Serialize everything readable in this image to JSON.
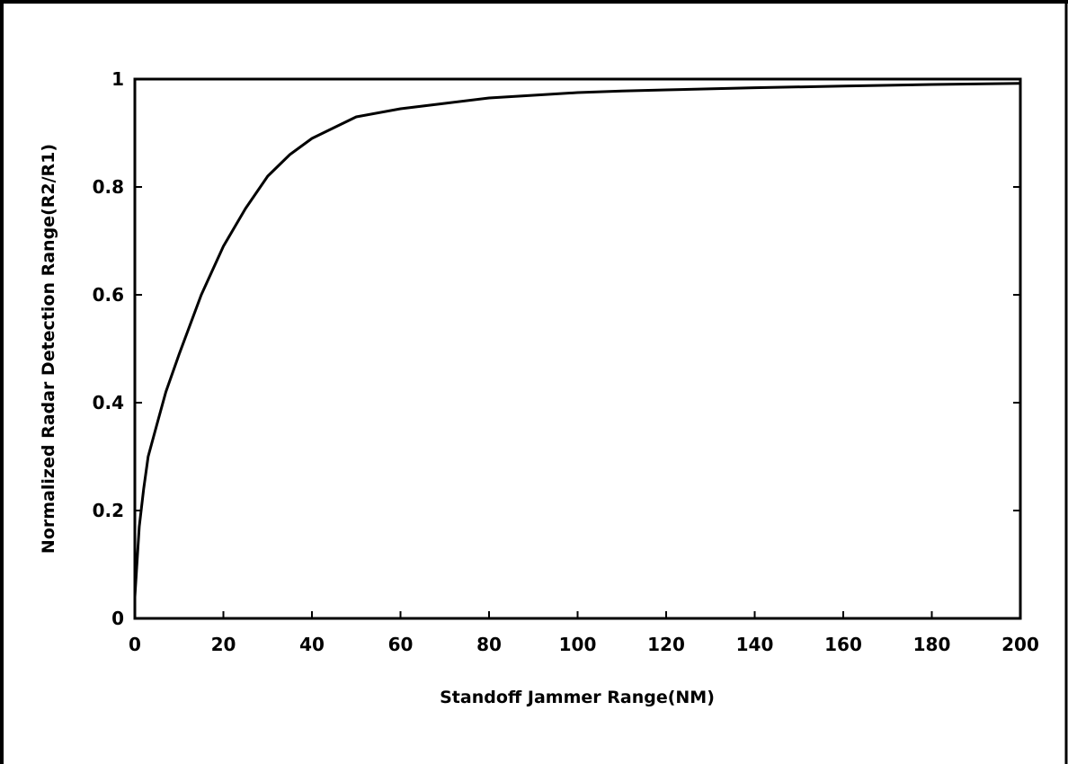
{
  "chart_data": {
    "type": "line",
    "title": "",
    "xlabel": "Standoff Jammer Range(NM)",
    "ylabel": "Normalized Radar Detection Range(R2/R1)",
    "xlim": [
      0,
      200
    ],
    "ylim": [
      0,
      1
    ],
    "x_ticks": [
      0,
      20,
      40,
      60,
      80,
      100,
      120,
      140,
      160,
      180,
      200
    ],
    "x_tick_labels": [
      "0",
      "20",
      "40",
      "60",
      "80",
      "100",
      "120",
      "140",
      "160",
      "180",
      "200"
    ],
    "y_ticks": [
      0,
      0.2,
      0.4,
      0.6,
      0.8,
      1
    ],
    "y_tick_labels": [
      "0",
      "0.2",
      "0.4",
      "0.6",
      "0.8",
      "1"
    ],
    "grid": false,
    "legend": "none",
    "line_color": "#000000",
    "series": [
      {
        "x": [
          0,
          1,
          2,
          3,
          5,
          7,
          10,
          15,
          20,
          25,
          30,
          35,
          40,
          45,
          50,
          60,
          70,
          80,
          90,
          100,
          110,
          120,
          140,
          160,
          180,
          200
        ],
        "y": [
          0.04,
          0.17,
          0.24,
          0.3,
          0.36,
          0.42,
          0.49,
          0.6,
          0.69,
          0.76,
          0.82,
          0.86,
          0.89,
          0.91,
          0.93,
          0.945,
          0.955,
          0.965,
          0.97,
          0.975,
          0.978,
          0.98,
          0.984,
          0.987,
          0.99,
          0.992
        ]
      }
    ]
  }
}
